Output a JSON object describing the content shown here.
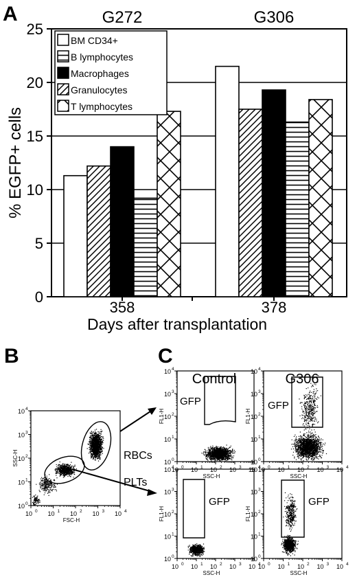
{
  "panel_labels": {
    "a": "A",
    "b": "B",
    "c": "C"
  },
  "chart_data": [
    {
      "type": "bar",
      "panel": "A",
      "groups": [
        "G272",
        "G306"
      ],
      "categories": [
        "358",
        "378"
      ],
      "xlabel": "Days after transplantation",
      "ylabel": "% EGFP+ cells",
      "ylim": [
        0,
        25
      ],
      "yticks": [
        0,
        5,
        10,
        15,
        20,
        25
      ],
      "grid": true,
      "legend_position": "top-left",
      "series": [
        {
          "name": "BM CD34+",
          "pattern": "white"
        },
        {
          "name": "B lymphocytes",
          "pattern": "horizontal-lines"
        },
        {
          "name": "Macrophages",
          "pattern": "black"
        },
        {
          "name": "Granulocytes",
          "pattern": "diagonal-lines"
        },
        {
          "name": "T lymphocytes",
          "pattern": "crosshatch"
        }
      ],
      "bars": [
        [
          {
            "series": "BM CD34+",
            "value": 11.3
          },
          {
            "series": "Granulocytes",
            "value": 12.2
          },
          {
            "series": "Macrophages",
            "value": 14.0
          },
          {
            "series": "B lymphocytes",
            "value": 9.2
          },
          {
            "series": "T lymphocytes",
            "value": 17.3
          }
        ],
        [
          {
            "series": "BM CD34+",
            "value": 21.5
          },
          {
            "series": "Granulocytes",
            "value": 17.5
          },
          {
            "series": "Macrophages",
            "value": 19.3
          },
          {
            "series": "B lymphocytes",
            "value": 16.3
          },
          {
            "series": "T lymphocytes",
            "value": 18.4
          }
        ]
      ]
    },
    {
      "type": "scatter",
      "panel": "B",
      "xlabel": "FSC-H",
      "ylabel": "SSC-H",
      "scale": "log",
      "xlim": [
        1,
        10000
      ],
      "ylim": [
        1,
        10000
      ],
      "gates": [
        {
          "label": "RBCs",
          "center": [
            800,
            1200
          ]
        },
        {
          "label": "PLTs",
          "center": [
            25,
            20
          ]
        }
      ]
    },
    {
      "type": "scatter",
      "panel": "C",
      "xlabel": "SSC-H",
      "ylabel": "FL1-H",
      "scale": "log",
      "gate_label": "GFP",
      "columns": [
        "Control",
        "G306"
      ],
      "rows": [
        "RBCs",
        "PLTs"
      ]
    }
  ],
  "tick_labels": {
    "base": "10",
    "exponents": [
      "0",
      "1",
      "2",
      "3",
      "4"
    ]
  }
}
